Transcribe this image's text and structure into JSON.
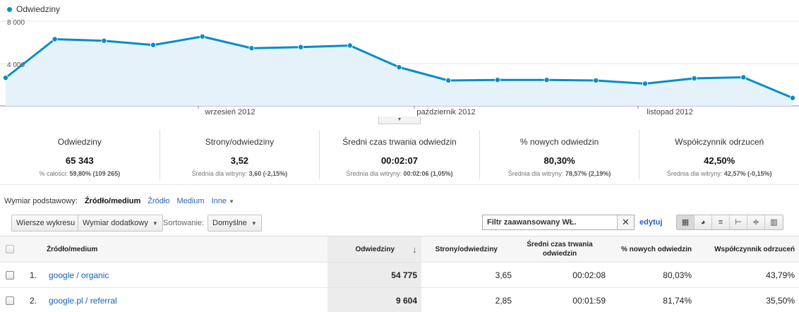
{
  "colors": {
    "series": "#058dc7",
    "area": "#e5f2f9"
  },
  "chart": {
    "legend": "Odwiedziny",
    "y_ticks": [
      "8 000",
      "4 000"
    ],
    "x_ticks": [
      "wrzesień 2012",
      "październik 2012",
      "listopad 2012"
    ]
  },
  "chart_data": {
    "type": "area",
    "series": [
      {
        "name": "Odwiedziny",
        "values": [
          2650,
          6300,
          6150,
          5750,
          6550,
          5450,
          5550,
          5700,
          3650,
          2400,
          2450,
          2450,
          2400,
          2100,
          2600,
          2700,
          750
        ]
      }
    ],
    "ylim": [
      0,
      8000
    ],
    "x_labels": [
      "wrzesień 2012",
      "październik 2012",
      "listopad 2012"
    ],
    "grid": true
  },
  "scorecards": [
    {
      "title": "Odwiedziny",
      "value": "65 343",
      "sub_label": "% całości:",
      "sub_value": "59,80% (109 265)"
    },
    {
      "title": "Strony/odwiedziny",
      "value": "3,52",
      "sub_label": "Średnia dla witryny:",
      "sub_value": "3,60 (-2,15%)"
    },
    {
      "title": "Średni czas trwania odwiedzin",
      "value": "00:02:07",
      "sub_label": "Średnia dla witryny:",
      "sub_value": "00:02:06 (1,05%)"
    },
    {
      "title": "% nowych odwiedzin",
      "value": "80,30%",
      "sub_label": "Średnia dla witryny:",
      "sub_value": "78,57% (2,19%)"
    },
    {
      "title": "Współczynnik odrzuceń",
      "value": "42,50%",
      "sub_label": "Średnia dla witryny:",
      "sub_value": "42,57% (-0,15%)"
    }
  ],
  "dimension": {
    "label": "Wymiar podstawowy:",
    "active": "Źródło/medium",
    "options": [
      "Źródło",
      "Medium",
      "Inne"
    ]
  },
  "toolbar": {
    "plot_rows": "Wiersze wykresu",
    "secondary_dim": "Wymiar dodatkowy",
    "sort_label": "Sortowanie:",
    "sort_value": "Domyślne",
    "filter_value": "Filtr zaawansowany WŁ.",
    "edit": "edytuj"
  },
  "table": {
    "headers": [
      "Źródło/medium",
      "Odwiedziny",
      "Strony/odwiedziny",
      "Średni czas trwania odwiedzin",
      "% nowych odwiedzin",
      "Współczynnik odrzuceń"
    ],
    "rows": [
      {
        "idx": "1.",
        "source": "google / organic",
        "visits": "54 775",
        "pages": "3,65",
        "time": "00:02:08",
        "new": "80,03%",
        "bounce": "43,79%"
      },
      {
        "idx": "2.",
        "source": "google.pl / referral",
        "visits": "9 604",
        "pages": "2,85",
        "time": "00:01:59",
        "new": "81,74%",
        "bounce": "35,50%"
      }
    ]
  }
}
